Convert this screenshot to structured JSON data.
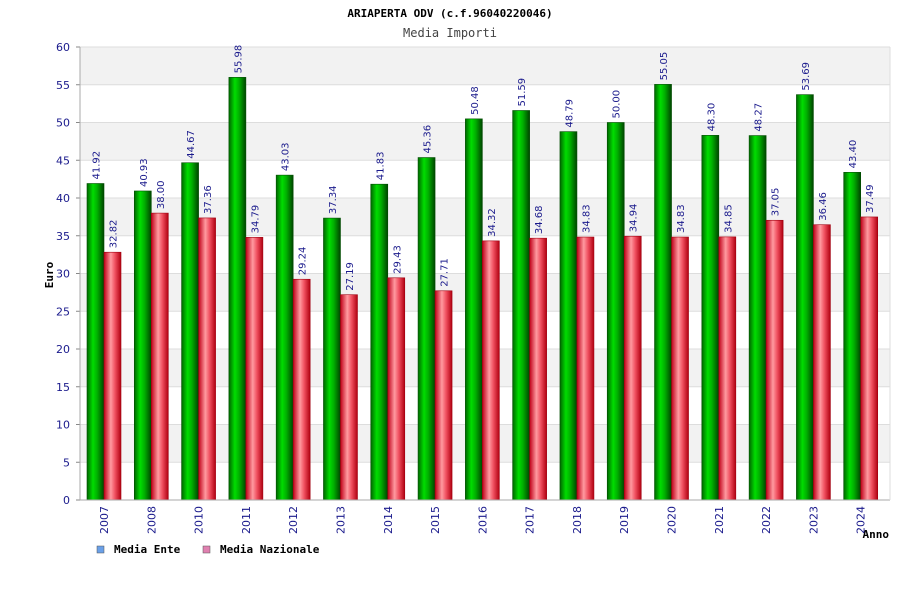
{
  "chart_data": {
    "type": "bar",
    "title": "ARIAPERTA ODV (c.f.96040220046)",
    "subtitle": "Media Importi",
    "xlabel": "Anno",
    "ylabel": "Euro",
    "ylim": [
      0,
      60
    ],
    "yticks": [
      0,
      5,
      10,
      15,
      20,
      25,
      30,
      35,
      40,
      45,
      50,
      55,
      60
    ],
    "categories": [
      "2007",
      "2008",
      "2010",
      "2011",
      "2012",
      "2013",
      "2014",
      "2015",
      "2016",
      "2017",
      "2018",
      "2019",
      "2020",
      "2021",
      "2022",
      "2023",
      "2024"
    ],
    "series": [
      {
        "name": "Media Ente",
        "color": "#00aa00",
        "legend_color": "#6aa0e8",
        "values": [
          41.92,
          40.93,
          44.67,
          55.98,
          43.03,
          37.34,
          41.83,
          45.36,
          50.48,
          51.59,
          48.79,
          50.0,
          55.05,
          48.3,
          48.27,
          53.69,
          43.4
        ],
        "labels": [
          "41.92",
          "40.93",
          "44.67",
          "55.98",
          "43.03",
          "37.34",
          "41.83",
          "45.36",
          "50.48",
          "51.59",
          "48.79",
          "50.00",
          "55.05",
          "48.30",
          "48.27",
          "53.69",
          "43.40"
        ]
      },
      {
        "name": "Media Nazionale",
        "color": "#e02020",
        "legend_color": "#e080b0",
        "values": [
          32.82,
          38.0,
          37.36,
          34.79,
          29.24,
          27.19,
          29.43,
          27.71,
          34.32,
          34.68,
          34.83,
          34.94,
          34.83,
          34.85,
          37.05,
          36.46,
          37.49
        ],
        "labels": [
          "32.82",
          "38.00",
          "37.36",
          "34.79",
          "29.24",
          "27.19",
          "29.43",
          "27.71",
          "34.32",
          "34.68",
          "34.83",
          "34.94",
          "34.83",
          "34.85",
          "37.05",
          "36.46",
          "37.49"
        ]
      }
    ],
    "grid": true,
    "legend": "bottom-left"
  }
}
